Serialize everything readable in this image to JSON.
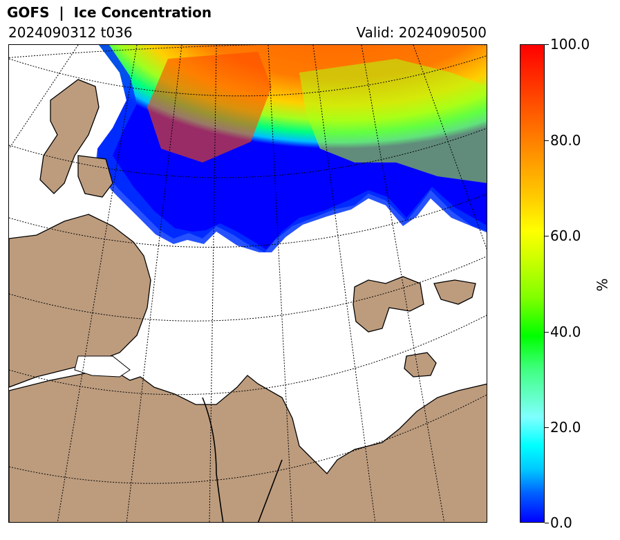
{
  "header": {
    "title": "GOFS  |  Ice Concentration",
    "run": "2024090312 t036",
    "valid": "Valid: 2024090500"
  },
  "map": {
    "land_color": "#bd9c7e",
    "ocean_color": "#ffffff",
    "coastline_color": "#000000",
    "graticule_style": "dotted"
  },
  "colorbar": {
    "unit": "%",
    "ticks": [
      "0.0",
      "20.0",
      "40.0",
      "60.0",
      "80.0",
      "100.0"
    ],
    "min": 0,
    "max": 100,
    "colors": [
      "#0000ff",
      "#00ffff",
      "#00ff00",
      "#ffff00",
      "#ff9900",
      "#ff0000"
    ]
  }
}
